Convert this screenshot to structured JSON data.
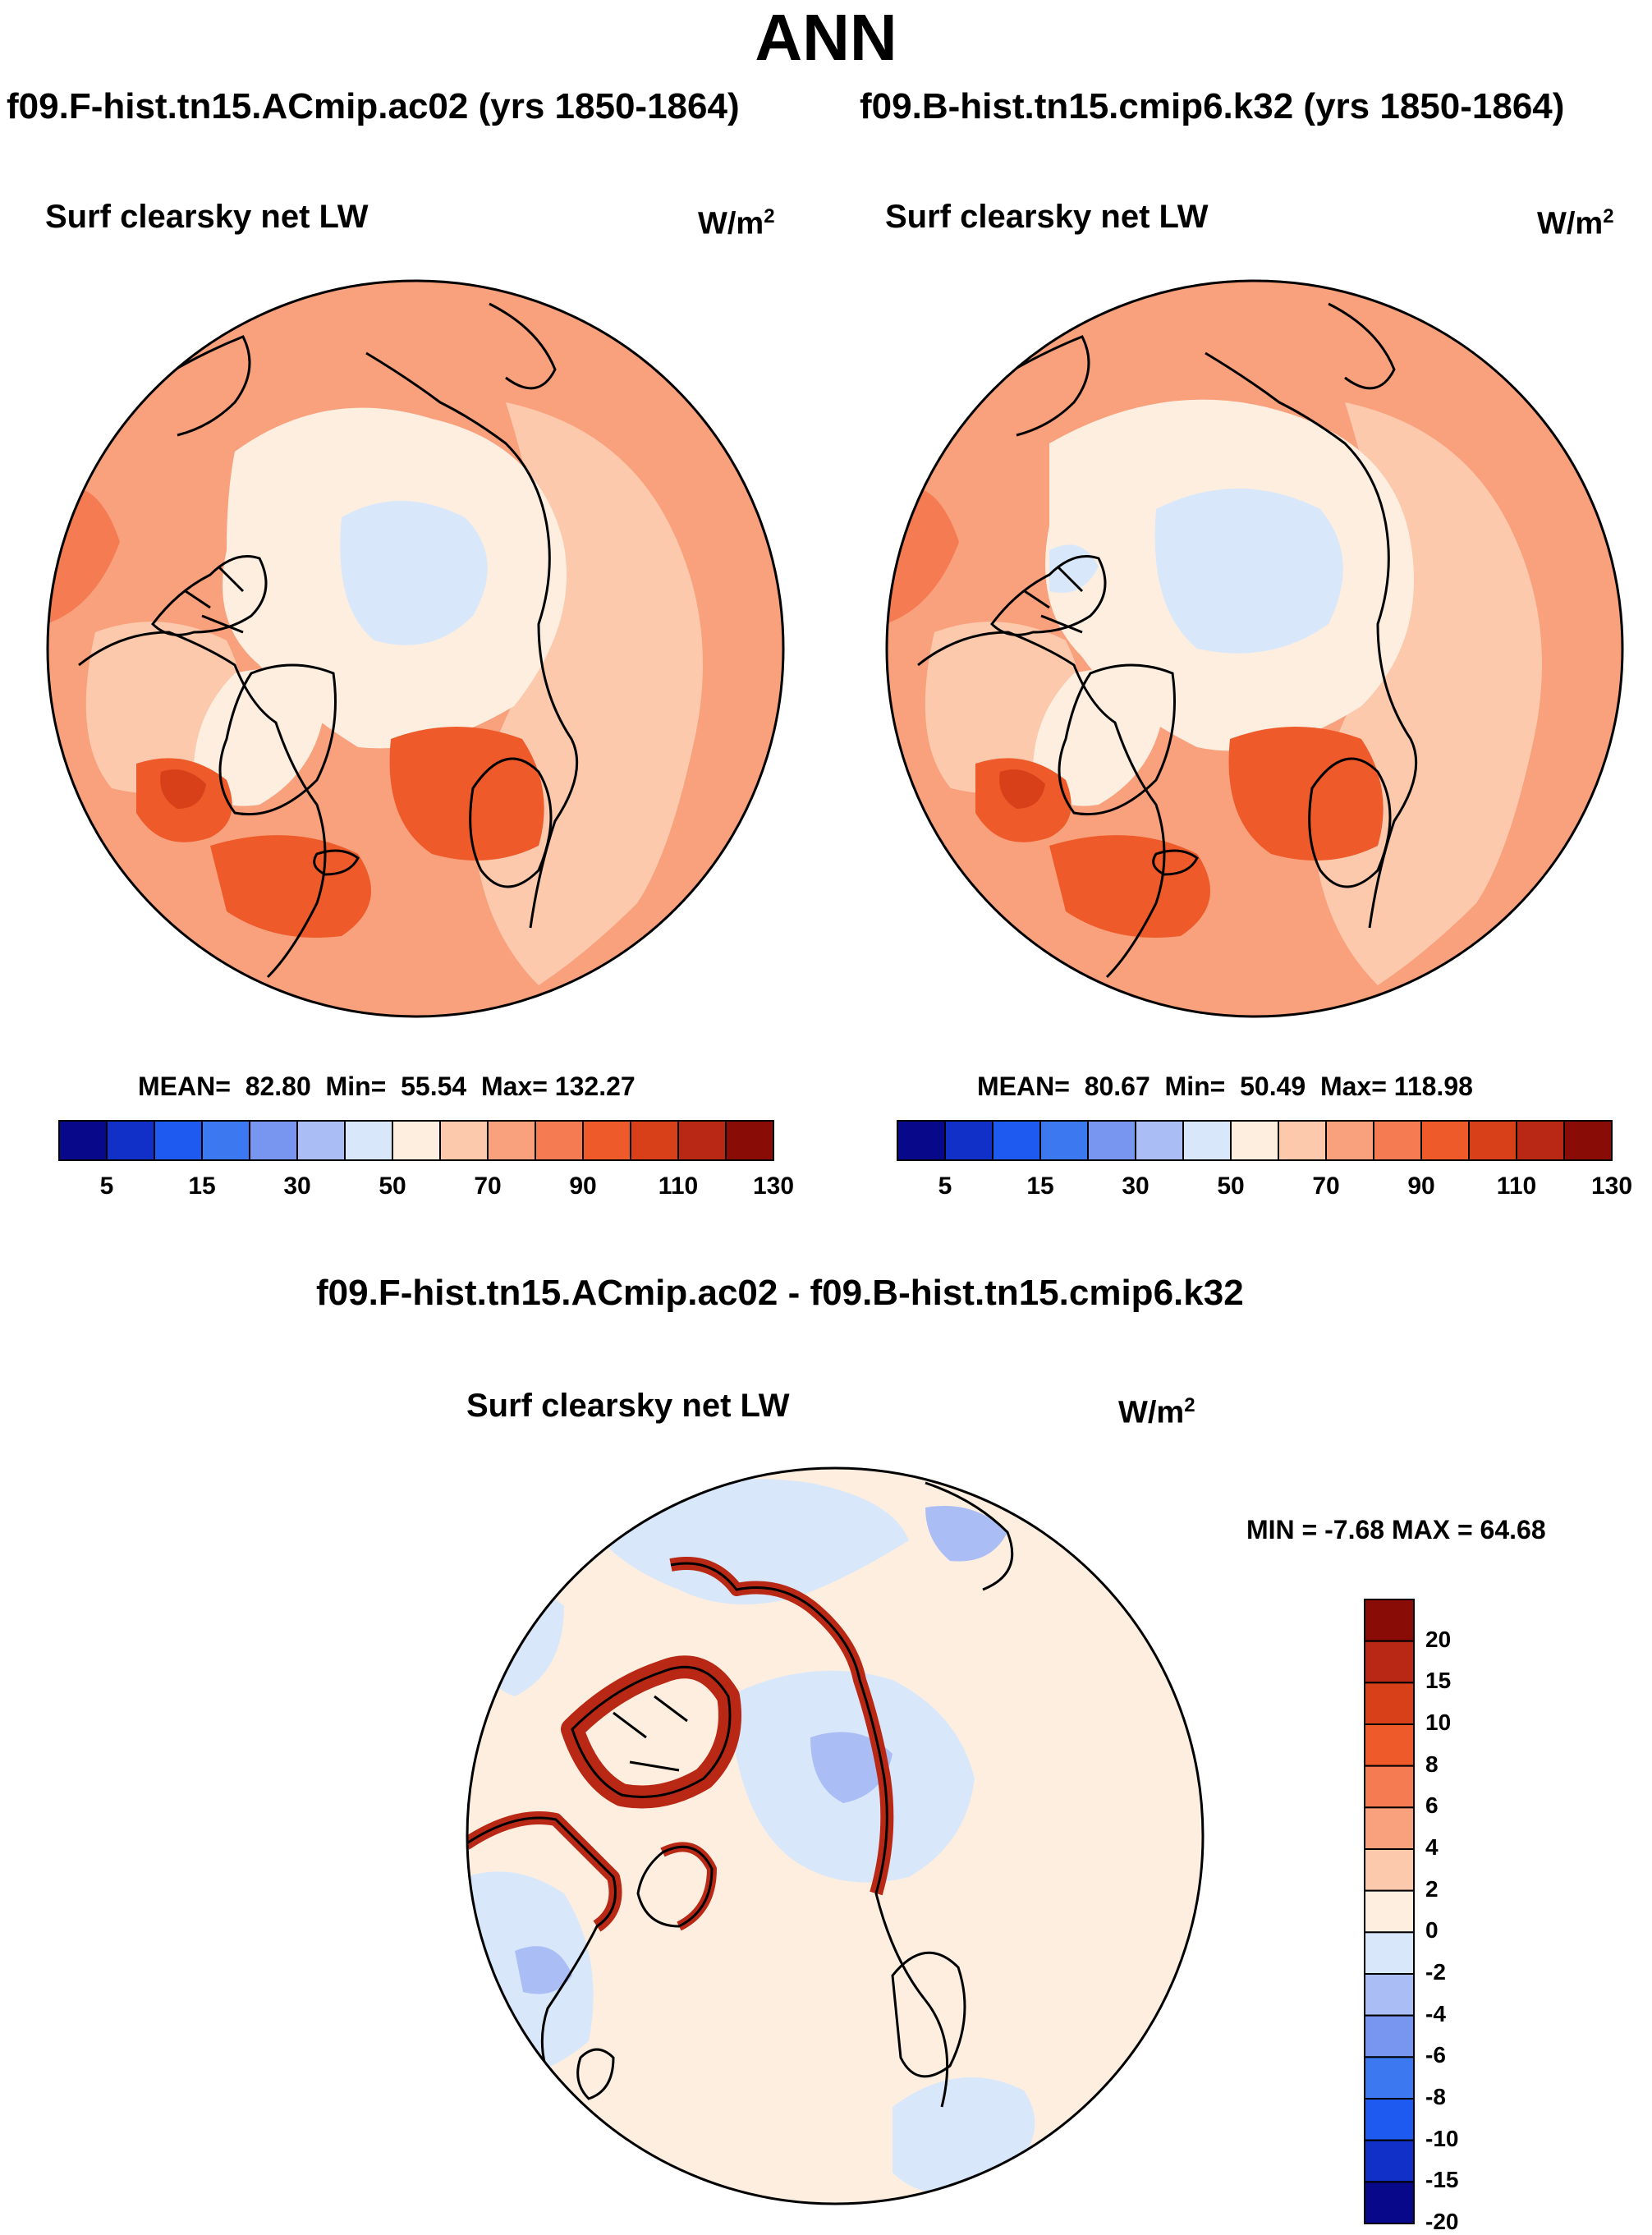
{
  "figure": {
    "title": "ANN",
    "diff_title": "f09.F-hist.tn15.ACmip.ac02 - f09.B-hist.tn15.cmip6.k32"
  },
  "panels": [
    {
      "case": "f09.F-hist.tn15.ACmip.ac02 (yrs 1850-1864)",
      "variable": "Surf clearsky net LW",
      "units_base": "W/m",
      "units_exp": "2",
      "mean_label": "MEAN=",
      "mean": "82.80",
      "min_label": "Min=",
      "min": "55.54",
      "max_label": "Max=",
      "max": "132.27"
    },
    {
      "case": "f09.B-hist.tn15.cmip6.k32 (yrs 1850-1864)",
      "variable": "Surf clearsky net LW",
      "units_base": "W/m",
      "units_exp": "2",
      "mean_label": "MEAN=",
      "mean": "80.67",
      "min_label": "Min=",
      "min": "50.49",
      "max_label": "Max=",
      "max": "118.98"
    }
  ],
  "diff_panel": {
    "variable": "Surf clearsky net LW",
    "units_base": "W/m",
    "units_exp": "2",
    "minmax_text": "MIN =  -7.68 MAX =  64.68"
  },
  "colorbar_main": {
    "colors": [
      "#08088a",
      "#1030c8",
      "#1e5af0",
      "#3c78f0",
      "#7896f0",
      "#aabef5",
      "#d8e8fa",
      "#fdeee0",
      "#fcc9ad",
      "#f9a07c",
      "#f57c52",
      "#ee5a2a",
      "#d8401a",
      "#b82814",
      "#8a0c06"
    ],
    "tick_labels": [
      "5",
      "15",
      "30",
      "50",
      "70",
      "90",
      "110",
      "130"
    ]
  },
  "colorbar_diff": {
    "colors": [
      "#8a0c06",
      "#b82814",
      "#d8401a",
      "#ee5a2a",
      "#f57c52",
      "#f9a07c",
      "#fcc9ad",
      "#fdeee0",
      "#d8e8fa",
      "#aabef5",
      "#7896f0",
      "#3c78f0",
      "#1e5af0",
      "#1030c8",
      "#08088a"
    ],
    "tick_labels": [
      "20",
      "15",
      "10",
      "8",
      "6",
      "4",
      "2",
      "0",
      "-2",
      "-4",
      "-6",
      "-8",
      "-10",
      "-15",
      "-20"
    ]
  },
  "map_colors": {
    "ocean_base": "#f9a07c",
    "land_light": "#fcc9ad",
    "ice_cream": "#fdeee0",
    "ice_blue": "#d8e8fa",
    "warm": "#f57c52",
    "hot": "#ee5a2a",
    "hottest": "#d8401a",
    "diff_base": "#fdeee0",
    "diff_blue": "#d8e8fa",
    "diff_blue2": "#aabef5",
    "diff_coast": "#b82814"
  }
}
